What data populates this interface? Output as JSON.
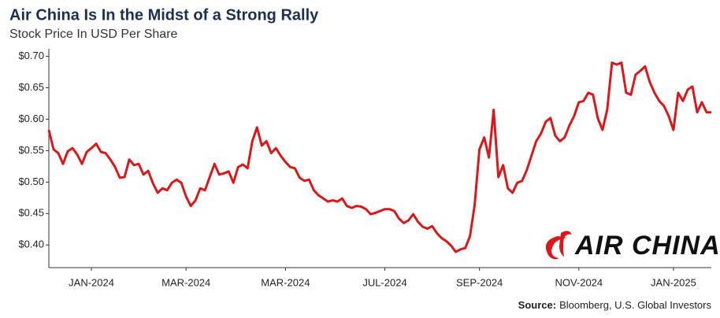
{
  "chart_data": {
    "type": "line",
    "title": "Air China Is In the Midst of a Strong Rally",
    "subtitle": "Stock Price In USD Per Share",
    "color": "#d7191c",
    "values": [
      0.583,
      0.552,
      0.546,
      0.529,
      0.549,
      0.554,
      0.544,
      0.529,
      0.548,
      0.554,
      0.561,
      0.548,
      0.546,
      0.536,
      0.524,
      0.507,
      0.508,
      0.536,
      0.527,
      0.529,
      0.512,
      0.518,
      0.498,
      0.483,
      0.49,
      0.487,
      0.499,
      0.504,
      0.499,
      0.477,
      0.462,
      0.471,
      0.49,
      0.487,
      0.508,
      0.529,
      0.512,
      0.514,
      0.517,
      0.499,
      0.524,
      0.528,
      0.522,
      0.565,
      0.587,
      0.558,
      0.565,
      0.546,
      0.554,
      0.542,
      0.532,
      0.524,
      0.522,
      0.507,
      0.502,
      0.504,
      0.487,
      0.479,
      0.474,
      0.469,
      0.471,
      0.469,
      0.474,
      0.462,
      0.459,
      0.462,
      0.461,
      0.457,
      0.449,
      0.451,
      0.454,
      0.457,
      0.457,
      0.454,
      0.442,
      0.435,
      0.439,
      0.449,
      0.437,
      0.429,
      0.426,
      0.43,
      0.419,
      0.411,
      0.406,
      0.399,
      0.389,
      0.393,
      0.395,
      0.414,
      0.464,
      0.552,
      0.571,
      0.539,
      0.615,
      0.508,
      0.527,
      0.49,
      0.483,
      0.499,
      0.502,
      0.519,
      0.542,
      0.565,
      0.577,
      0.596,
      0.602,
      0.574,
      0.565,
      0.571,
      0.59,
      0.605,
      0.627,
      0.629,
      0.642,
      0.639,
      0.602,
      0.583,
      0.615,
      0.69,
      0.687,
      0.69,
      0.642,
      0.639,
      0.671,
      0.677,
      0.684,
      0.659,
      0.642,
      0.629,
      0.621,
      0.605,
      0.583,
      0.642,
      0.629,
      0.647,
      0.652,
      0.611,
      0.627,
      0.611,
      0.611
    ],
    "xlim": [
      0,
      140
    ],
    "xticks": [
      {
        "value": 9,
        "label": "JAN-2024"
      },
      {
        "value": 29,
        "label": "MAR-2024"
      },
      {
        "value": 50,
        "label": "MAR-2024"
      },
      {
        "value": 71,
        "label": "JUL-2024"
      },
      {
        "value": 91,
        "label": "SEP-2024"
      },
      {
        "value": 112,
        "label": "NOV-2024"
      },
      {
        "value": 132,
        "label": "JAN-2025"
      }
    ],
    "ylim": [
      0.364,
      0.712
    ],
    "yticks": [
      {
        "value": 0.4,
        "label": "$0.40"
      },
      {
        "value": 0.45,
        "label": "$0.45"
      },
      {
        "value": 0.5,
        "label": "$0.50"
      },
      {
        "value": 0.55,
        "label": "$0.55"
      },
      {
        "value": 0.6,
        "label": "$0.60"
      },
      {
        "value": 0.65,
        "label": "$0.65"
      },
      {
        "value": 0.7,
        "label": "$0.70"
      }
    ],
    "grid": false,
    "logo_text": "AIR CHINA",
    "source_label": "Source:",
    "source": "Bloomberg, U.S. Global Investors"
  }
}
